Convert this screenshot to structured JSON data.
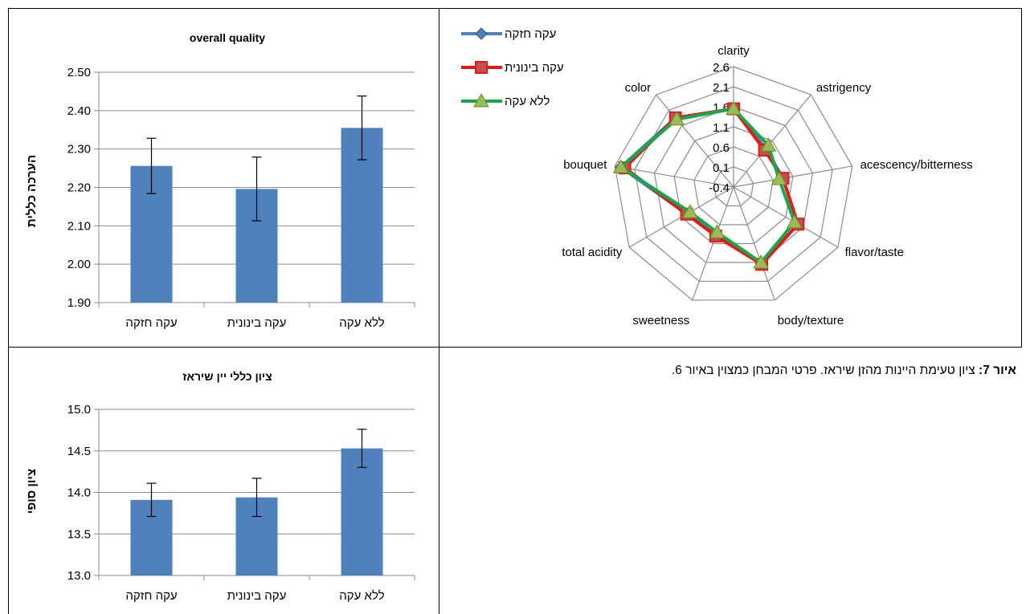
{
  "chart_data": [
    {
      "type": "bar",
      "title": "overall quality",
      "ylabel": "הערכה כללית",
      "categories": [
        "עקה חזקה",
        "עקה בינונית",
        "ללא עקה"
      ],
      "values": [
        2.256,
        2.196,
        2.355
      ],
      "errors": [
        0.072,
        0.083,
        0.083
      ],
      "ylim": [
        1.9,
        2.5
      ],
      "yticks": [
        "1.90",
        "2.00",
        "2.10",
        "2.20",
        "2.30",
        "2.40",
        "2.50"
      ],
      "ytick_values": [
        1.9,
        2.0,
        2.1,
        2.2,
        2.3,
        2.4,
        2.5
      ],
      "grid": true,
      "color": "#4f81bd"
    },
    {
      "type": "radar",
      "axes": [
        "clarity",
        "astrigency",
        "acescency/bitterness",
        "flavor/taste",
        "body/texture",
        "sweetness",
        "total acidity",
        "bouquet",
        "color"
      ],
      "rlim": [
        -0.4,
        2.6
      ],
      "rticks": [
        "2.6",
        "2.1",
        "1.6",
        "1.1",
        "0.6",
        "0.1",
        "-0.4"
      ],
      "rtick_values": [
        2.6,
        2.1,
        1.6,
        1.1,
        0.6,
        0.1,
        -0.4
      ],
      "series": [
        {
          "name": "עקה חזקה",
          "color": "#4f81bd",
          "marker": "diamond",
          "values": [
            1.55,
            0.85,
            0.85,
            1.45,
            1.65,
            0.85,
            0.95,
            2.45,
            1.85
          ]
        },
        {
          "name": "עקה בינונית",
          "color": "#e31a1c",
          "marker": "square",
          "values": [
            1.55,
            0.8,
            0.85,
            1.45,
            1.65,
            0.9,
            0.95,
            2.35,
            1.85
          ]
        },
        {
          "name": "ללא עקה",
          "color": "#18a84a",
          "marker": "triangle",
          "values": [
            1.55,
            0.95,
            0.75,
            1.35,
            1.6,
            0.8,
            0.85,
            2.45,
            1.8
          ]
        }
      ],
      "legend": "top-left"
    },
    {
      "type": "bar",
      "title": "ציון כללי יין שיראז",
      "ylabel": "ציון סופי",
      "categories": [
        "עקה חזקה",
        "עקה בינונית",
        "ללא עקה"
      ],
      "values": [
        13.91,
        13.94,
        14.53
      ],
      "errors": [
        0.2,
        0.23,
        0.23
      ],
      "ylim": [
        13.0,
        15.0
      ],
      "yticks": [
        "13.0",
        "13.5",
        "14.0",
        "14.5",
        "15.0"
      ],
      "ytick_values": [
        13.0,
        13.5,
        14.0,
        14.5,
        15.0
      ],
      "grid": true,
      "color": "#4f81bd"
    }
  ],
  "caption": {
    "label": "איור 7:",
    "text": " ציון טעימת היינות מהזן שיראז. פרטי המבחן כמצוין באיור 6."
  }
}
